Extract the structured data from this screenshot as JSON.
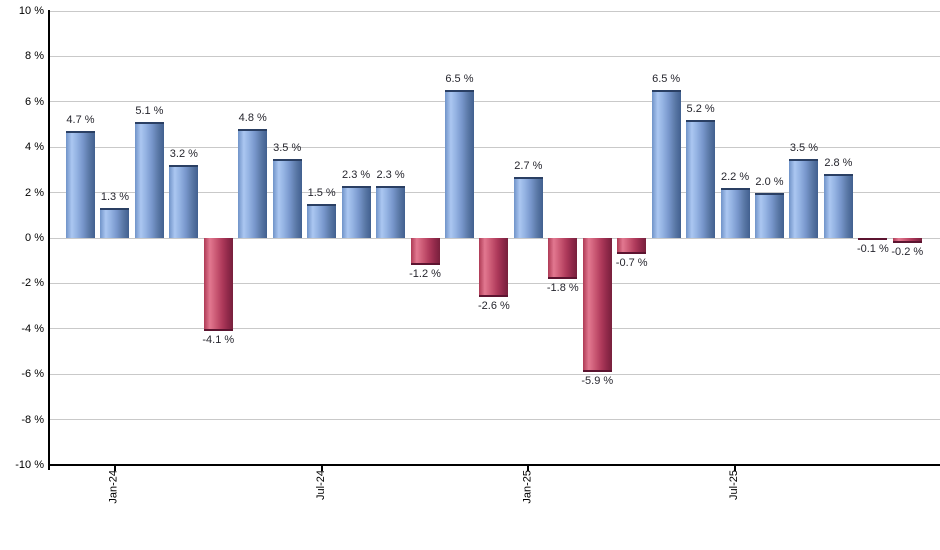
{
  "chart_data": {
    "type": "bar",
    "title": "",
    "xlabel": "",
    "ylabel": "",
    "ylim": [
      -10,
      10
    ],
    "grid": true,
    "legend": "none",
    "values": [
      4.7,
      1.3,
      5.1,
      3.2,
      -4.1,
      4.8,
      3.5,
      1.5,
      2.3,
      2.3,
      -1.2,
      6.5,
      -2.6,
      2.7,
      -1.8,
      -5.9,
      -0.7,
      6.5,
      5.2,
      2.2,
      2.0,
      3.5,
      2.8,
      -0.1,
      -0.2
    ],
    "bar_labels": [
      "4.7 %",
      "1.3 %",
      "5.1 %",
      "3.2 %",
      "-4.1 %",
      "4.8 %",
      "3.5 %",
      "1.5 %",
      "2.3 %",
      "2.3 %",
      "-1.2 %",
      "6.5 %",
      "-2.6 %",
      "2.7 %",
      "-1.8 %",
      "-5.9 %",
      "-0.7 %",
      "6.5 %",
      "5.2 %",
      "2.2 %",
      "2.0 %",
      "3.5 %",
      "2.8 %",
      "-0.1 %",
      "-0.2 %"
    ],
    "y_ticks": [
      {
        "value": 10,
        "label": "10 %"
      },
      {
        "value": 8,
        "label": "8 %"
      },
      {
        "value": 6,
        "label": "6 %"
      },
      {
        "value": 4,
        "label": "4 %"
      },
      {
        "value": 2,
        "label": "2 %"
      },
      {
        "value": 0,
        "label": "0 %"
      },
      {
        "value": -2,
        "label": "-2 %"
      },
      {
        "value": -4,
        "label": "-4 %"
      },
      {
        "value": -6,
        "label": "-6 %"
      },
      {
        "value": -8,
        "label": "-8 %"
      },
      {
        "value": -10,
        "label": "-10 %"
      }
    ],
    "x_ticks": [
      {
        "index": 1,
        "label": "Jan-24"
      },
      {
        "index": 7,
        "label": "Jul-24"
      },
      {
        "index": 13,
        "label": "Jan-25"
      },
      {
        "index": 19,
        "label": "Jul-25"
      }
    ],
    "colors": {
      "positive_bar": "#7093c8",
      "positive_bar_highlight": "#abc7f1",
      "positive_bar_shadow": "#41608f",
      "positive_bar_cap": "#2a3f63",
      "negative_bar": "#c24a66",
      "negative_bar_highlight": "#e27890",
      "negative_bar_shadow": "#77203c",
      "negative_bar_cap": "#5c1430",
      "gridline": "#c9c9c9",
      "axis": "#000000",
      "label_text": "#26262e"
    }
  }
}
